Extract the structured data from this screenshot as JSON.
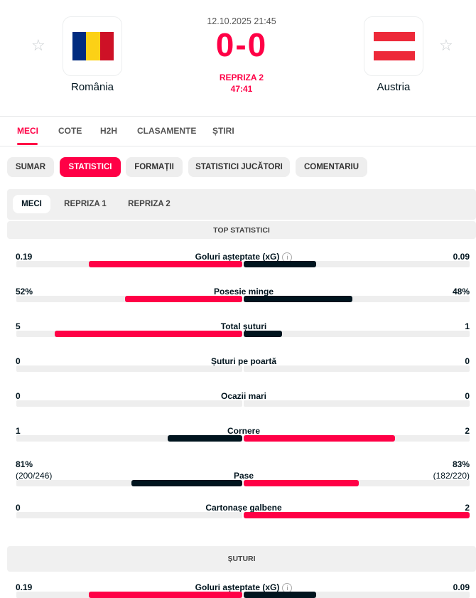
{
  "match": {
    "date": "12.10.2025 21:45",
    "score": "0-0",
    "period": "REPRIZA 2",
    "clock": "47:41",
    "home": {
      "name": "România",
      "flag_colors": [
        "#002b7f",
        "#fcd116",
        "#ce1126"
      ]
    },
    "away": {
      "name": "Austria",
      "flag_colors": [
        "#ed2939",
        "#ffffff",
        "#ed2939"
      ]
    }
  },
  "nav_tabs": [
    {
      "label": "MECI",
      "active": true
    },
    {
      "label": "COTE"
    },
    {
      "label": "H2H"
    },
    {
      "label": "CLASAMENTE"
    },
    {
      "label": "ȘTIRI"
    }
  ],
  "section_tabs": [
    {
      "label": "SUMAR"
    },
    {
      "label": "STATISTICI",
      "active": true
    },
    {
      "label": "FORMAȚII"
    },
    {
      "label": "STATISTICI JUCĂTORI"
    },
    {
      "label": "COMENTARIU"
    }
  ],
  "period_tabs": [
    {
      "label": "MECI",
      "active": true
    },
    {
      "label": "REPRIZA 1"
    },
    {
      "label": "REPRIZA 2"
    }
  ],
  "colors": {
    "accent": "#ff0046",
    "dark": "#00141e",
    "track": "#eeeeee"
  },
  "sections": [
    {
      "title": "TOP STATISTICI",
      "stats": [
        {
          "label": "Goluri așteptate (xG)",
          "info": true,
          "home": "0.19",
          "away": "0.09",
          "home_share": 0.68,
          "away_share": 0.32
        },
        {
          "label": "Posesie minge",
          "home": "52%",
          "away": "48%",
          "home_share": 0.52,
          "away_share": 0.48
        },
        {
          "label": "Total șuturi",
          "home": "5",
          "away": "1",
          "home_share": 0.83,
          "away_share": 0.17
        },
        {
          "label": "Șuturi pe poartă",
          "home": "0",
          "away": "0",
          "home_share": 0,
          "away_share": 0
        },
        {
          "label": "Ocazii mari",
          "home": "0",
          "away": "0",
          "home_share": 0,
          "away_share": 0
        },
        {
          "label": "Cornere",
          "home": "1",
          "away": "2",
          "home_share": 0.33,
          "away_share": 0.67
        },
        {
          "label": "Pase",
          "home": "81%",
          "home_sub": "(200/246)",
          "away": "83%",
          "away_sub": "(182/220)",
          "home_share": 0.49,
          "away_share": 0.51
        },
        {
          "label": "Cartonașe galbene",
          "home": "0",
          "away": "2",
          "home_share": 0,
          "away_share": 1
        }
      ]
    },
    {
      "title": "ȘUTURI",
      "stats": [
        {
          "label": "Goluri așteptate (xG)",
          "info": true,
          "home": "0.19",
          "away": "0.09",
          "home_share": 0.68,
          "away_share": 0.32
        }
      ]
    }
  ]
}
